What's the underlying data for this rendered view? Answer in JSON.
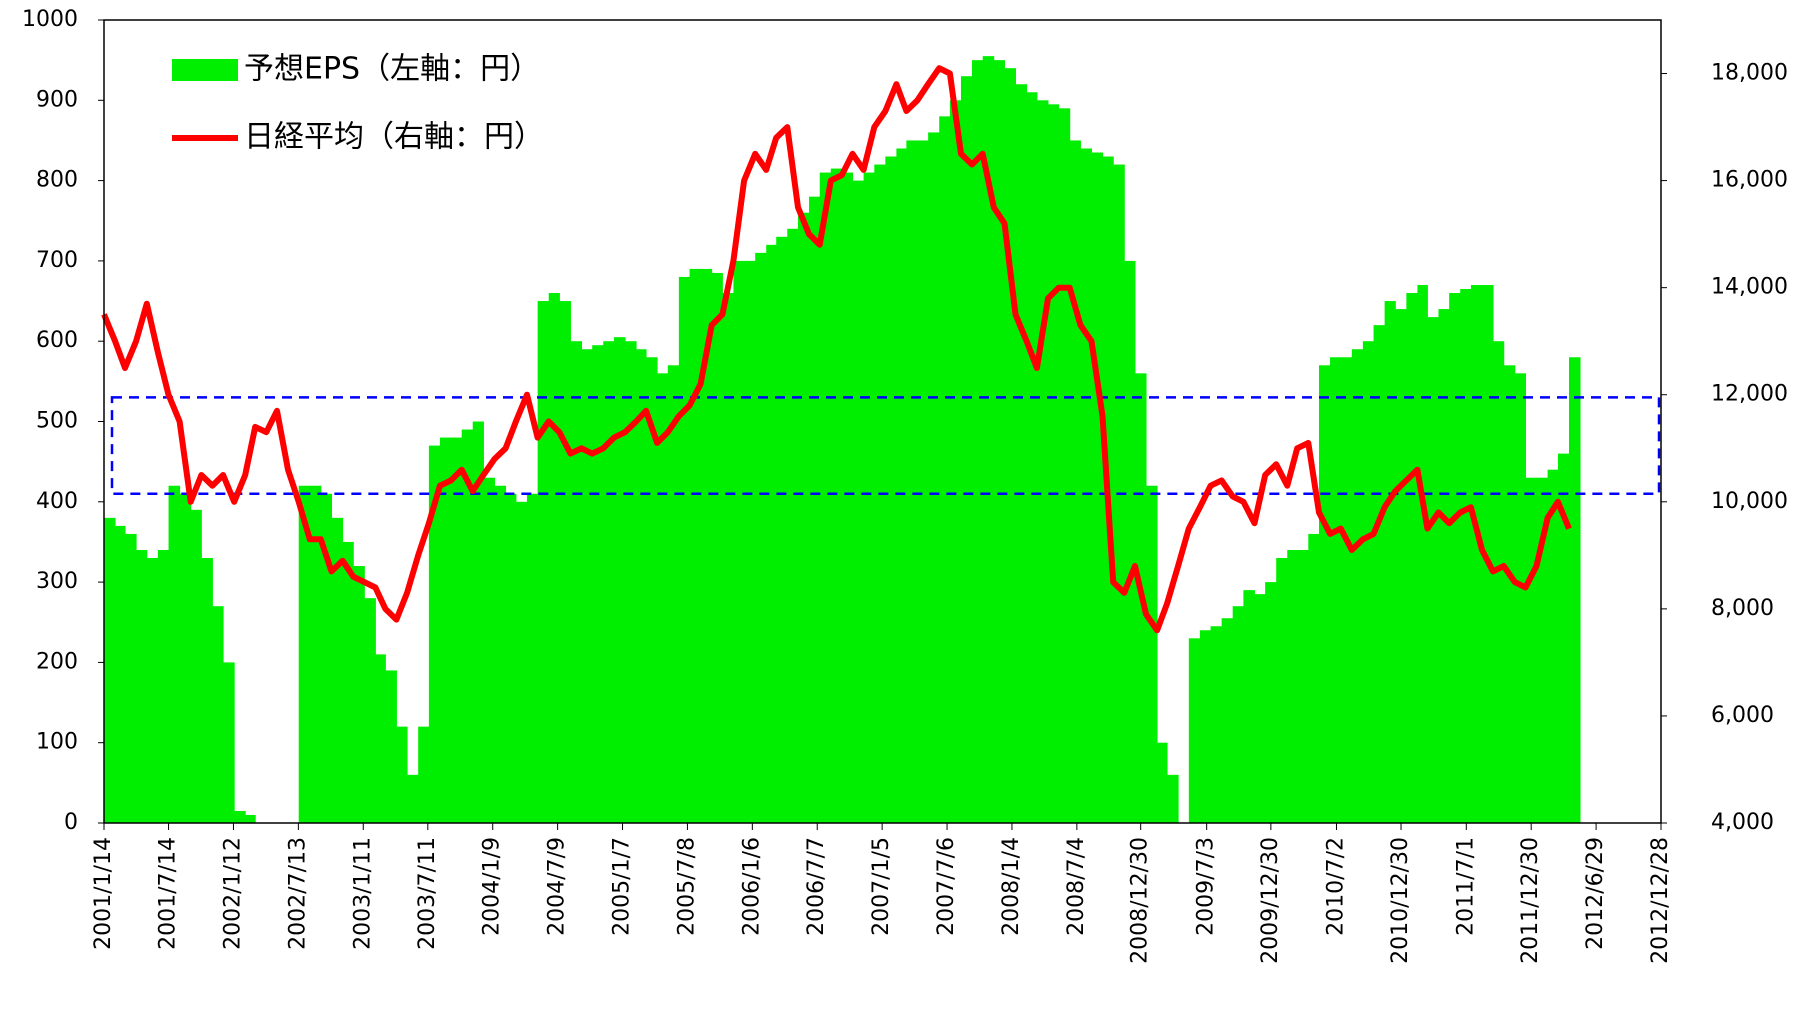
{
  "chart_data": {
    "type": "bar_line",
    "x": [
      "2001/1/14",
      "2001/2/14",
      "2001/3/14",
      "2001/4/14",
      "2001/5/14",
      "2001/6/14",
      "2001/7/14",
      "2001/8/14",
      "2001/9/14",
      "2001/10/14",
      "2001/11/14",
      "2001/12/14",
      "2002/1/14",
      "2002/2/14",
      "2002/3/14",
      "2002/4/14",
      "2002/5/14",
      "2002/6/14",
      "2002/7/14",
      "2002/8/14",
      "2002/9/14",
      "2002/10/14",
      "2002/11/14",
      "2002/12/14",
      "2003/1/14",
      "2003/2/14",
      "2003/3/14",
      "2003/4/14",
      "2003/5/14",
      "2003/6/14",
      "2003/7/14",
      "2003/8/14",
      "2003/9/14",
      "2003/10/14",
      "2003/11/14",
      "2003/12/14",
      "2004/1/14",
      "2004/2/14",
      "2004/3/14",
      "2004/4/14",
      "2004/5/14",
      "2004/6/14",
      "2004/7/14",
      "2004/8/14",
      "2004/9/14",
      "2004/10/14",
      "2004/11/14",
      "2004/12/14",
      "2005/1/14",
      "2005/2/14",
      "2005/3/14",
      "2005/4/14",
      "2005/5/14",
      "2005/6/14",
      "2005/7/14",
      "2005/8/14",
      "2005/9/14",
      "2005/10/14",
      "2005/11/14",
      "2005/12/14",
      "2006/1/14",
      "2006/2/14",
      "2006/3/14",
      "2006/4/14",
      "2006/5/14",
      "2006/6/14",
      "2006/7/14",
      "2006/8/14",
      "2006/9/14",
      "2006/10/14",
      "2006/11/14",
      "2006/12/14",
      "2007/1/14",
      "2007/2/14",
      "2007/3/14",
      "2007/4/14",
      "2007/5/14",
      "2007/6/14",
      "2007/7/14",
      "2007/8/14",
      "2007/9/14",
      "2007/10/14",
      "2007/11/14",
      "2007/12/14",
      "2008/1/14",
      "2008/2/14",
      "2008/3/14",
      "2008/4/14",
      "2008/5/14",
      "2008/6/14",
      "2008/7/14",
      "2008/8/14",
      "2008/9/14",
      "2008/10/14",
      "2008/11/14",
      "2008/12/14",
      "2009/1/14",
      "2009/2/14",
      "2009/3/14",
      "2009/4/14",
      "2009/5/14",
      "2009/6/14",
      "2009/7/14",
      "2009/8/14",
      "2009/9/14",
      "2009/10/14",
      "2009/11/14",
      "2009/12/14",
      "2010/1/14",
      "2010/2/14",
      "2010/3/14",
      "2010/4/14",
      "2010/5/14",
      "2010/6/14",
      "2010/7/14",
      "2010/8/14",
      "2010/9/14",
      "2010/10/14",
      "2010/11/14",
      "2010/12/14",
      "2011/1/14",
      "2011/2/14",
      "2011/3/14",
      "2011/4/14",
      "2011/5/14",
      "2011/6/14",
      "2011/7/14",
      "2011/8/14",
      "2011/9/14",
      "2011/10/14",
      "2011/11/14",
      "2011/12/14",
      "2012/1/14",
      "2012/2/14",
      "2012/3/14",
      "2012/4/14"
    ],
    "series": [
      {
        "name": "予想EPS（左軸：円）",
        "color": "#00ee00",
        "kind": "bar",
        "values": [
          380,
          370,
          360,
          340,
          330,
          340,
          420,
          410,
          390,
          330,
          270,
          200,
          15,
          10,
          0,
          0,
          0,
          0,
          420,
          420,
          410,
          380,
          350,
          320,
          280,
          210,
          190,
          120,
          60,
          120,
          470,
          480,
          480,
          490,
          500,
          430,
          420,
          410,
          400,
          410,
          650,
          660,
          650,
          600,
          590,
          595,
          600,
          605,
          600,
          590,
          580,
          560,
          570,
          680,
          690,
          690,
          685,
          660,
          700,
          700,
          710,
          720,
          730,
          740,
          760,
          780,
          810,
          815,
          810,
          800,
          810,
          820,
          830,
          840,
          850,
          850,
          860,
          880,
          900,
          930,
          950,
          955,
          950,
          940,
          920,
          910,
          900,
          895,
          890,
          850,
          840,
          835,
          830,
          820,
          700,
          560,
          420,
          100,
          60,
          0,
          230,
          240,
          245,
          255,
          270,
          290,
          285,
          300,
          330,
          340,
          340,
          360,
          570,
          580,
          580,
          590,
          600,
          620,
          650,
          640,
          660,
          670,
          630,
          640,
          660,
          665,
          670,
          670,
          600,
          570,
          560,
          430,
          430,
          440,
          460,
          580
        ]
      },
      {
        "name": "日経平均（右軸：円）",
        "color": "#ff0000",
        "kind": "line",
        "axis": "y2",
        "values": [
          13500,
          13000,
          12500,
          13000,
          13700,
          12800,
          12000,
          11500,
          10000,
          10500,
          10300,
          10500,
          10000,
          10500,
          11400,
          11300,
          11700,
          10600,
          10000,
          9300,
          9300,
          8700,
          8900,
          8600,
          8500,
          8400,
          8000,
          7800,
          8300,
          9000,
          9600,
          10300,
          10400,
          10600,
          10200,
          10500,
          10800,
          11000,
          11500,
          12000,
          11200,
          11500,
          11300,
          10900,
          11000,
          10900,
          11000,
          11200,
          11300,
          11500,
          11700,
          11100,
          11300,
          11600,
          11800,
          12200,
          13300,
          13500,
          14500,
          16000,
          16500,
          16200,
          16800,
          17000,
          15500,
          15000,
          14800,
          16000,
          16100,
          16500,
          16200,
          17000,
          17300,
          17800,
          17300,
          17500,
          17800,
          18100,
          18000,
          16500,
          16300,
          16500,
          15500,
          15200,
          13500,
          13000,
          12500,
          13800,
          14000,
          14000,
          13300,
          13000,
          11600,
          8500,
          8300,
          8800,
          7900,
          7600,
          8100,
          8800,
          9500,
          9900,
          10300,
          10400,
          10100,
          10000,
          9600,
          10500,
          10700,
          10300,
          11000,
          11100,
          9800,
          9400,
          9500,
          9100,
          9300,
          9400,
          9900,
          10200,
          10400,
          10600,
          9500,
          9800,
          9600,
          9800,
          9900,
          9100,
          8700,
          8800,
          8500,
          8400,
          8800,
          9700,
          10000,
          9500
        ]
      }
    ],
    "xlim": [
      "2001/1/14",
      "2012/12/28"
    ],
    "xticks": [
      "2001/1/14",
      "2001/7/14",
      "2002/1/12",
      "2002/7/13",
      "2003/1/11",
      "2003/7/11",
      "2004/1/9",
      "2004/7/9",
      "2005/1/7",
      "2005/7/8",
      "2006/1/6",
      "2006/7/7",
      "2007/1/5",
      "2007/7/6",
      "2008/1/4",
      "2008/7/4",
      "2008/12/30",
      "2009/7/3",
      "2009/12/30",
      "2010/7/2",
      "2010/12/30",
      "2011/7/1",
      "2011/12/30",
      "2012/6/29",
      "2012/12/28"
    ],
    "ylim": [
      0,
      1000
    ],
    "yticks": [
      0,
      100,
      200,
      300,
      400,
      500,
      600,
      700,
      800,
      900,
      1000
    ],
    "y2lim": [
      4000,
      19000
    ],
    "y2ticks": [
      {
        "value": 4000,
        "label": "4,000"
      },
      {
        "value": 6000,
        "label": "6,000"
      },
      {
        "value": 8000,
        "label": "8,000"
      },
      {
        "value": 10000,
        "label": "10,000"
      },
      {
        "value": 12000,
        "label": "12,000"
      },
      {
        "value": 14000,
        "label": "14,000"
      },
      {
        "value": 16000,
        "label": "16,000"
      },
      {
        "value": 18000,
        "label": "18,000"
      }
    ],
    "band": {
      "ylim": [
        410,
        530
      ],
      "color": "#0000ff"
    },
    "legend": "upper left"
  }
}
